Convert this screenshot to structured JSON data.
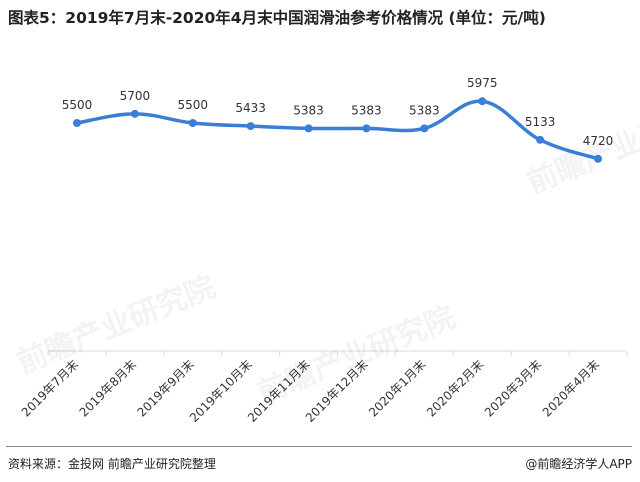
{
  "header": {
    "title": "图表5：2019年7月末-2020年4月末中国润滑油参考价格情况 (单位：元/吨)"
  },
  "footer": {
    "source": "资料来源：金投网 前瞻产业研究院整理",
    "brand": "@前瞻经济学人APP"
  },
  "watermark": {
    "text": "前瞻产业研究院"
  },
  "colors": {
    "line": "#3a7fd5",
    "axis": "#d9d9d9"
  },
  "chart_data": {
    "type": "line",
    "categories": [
      "2019年7月末",
      "2019年8月末",
      "2019年9月末",
      "2019年10月末",
      "2019年11月末",
      "2019年12月末",
      "2020年1月末",
      "2020年2月末",
      "2020年3月末",
      "2020年4月末"
    ],
    "series": [
      {
        "values": [
          5500,
          5700,
          5500,
          5433,
          5383,
          5383,
          5383,
          5975,
          5133,
          4720
        ]
      }
    ],
    "data_labels": [
      "5500",
      "5700",
      "5500",
      "5433",
      "5383",
      "5383",
      "5383",
      "5975",
      "5133",
      "4720"
    ],
    "ylim": [
      0,
      7000
    ],
    "grid": false,
    "smooth": true,
    "marker": "circle",
    "legend": "none"
  }
}
